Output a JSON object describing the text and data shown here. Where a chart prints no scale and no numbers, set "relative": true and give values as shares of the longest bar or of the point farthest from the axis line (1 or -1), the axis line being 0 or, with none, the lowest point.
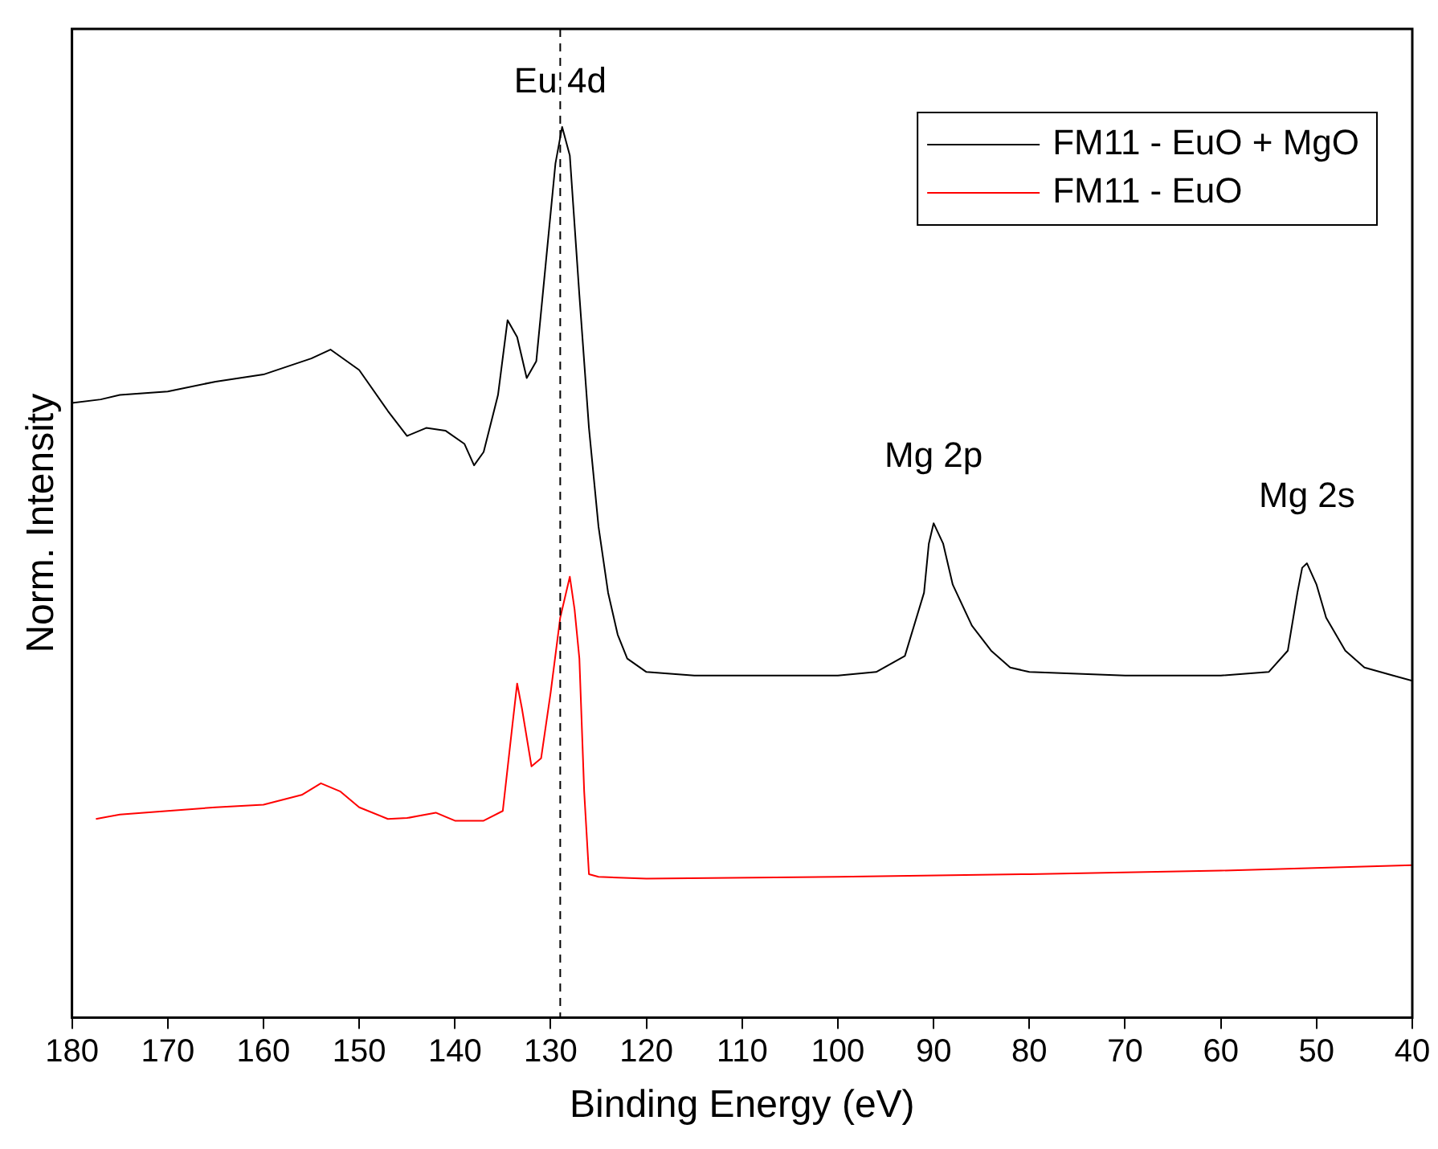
{
  "chart_data": {
    "type": "line",
    "xlabel": "Binding Energy (eV)",
    "ylabel": "Norm. Intensity",
    "relative": true,
    "xlim": [
      180,
      40
    ],
    "xticks": [
      180,
      170,
      160,
      150,
      140,
      130,
      120,
      110,
      100,
      90,
      80,
      70,
      60,
      50,
      40
    ],
    "tick_labels": "x",
    "legend": "top right",
    "grid": false,
    "marker": "none",
    "line_style": "solid",
    "series": [
      {
        "name": "FM11 - EuO + MgO",
        "color": "#000000",
        "x": [
          180,
          177,
          175,
          170,
          165,
          160,
          155,
          153,
          150,
          147,
          145,
          143,
          141,
          139,
          138,
          137,
          135.5,
          134.5,
          133.5,
          132.5,
          131.5,
          130.5,
          129.5,
          128.8,
          128,
          127,
          126,
          125,
          124,
          123,
          122,
          120,
          115,
          105,
          100,
          96,
          93,
          91,
          90.5,
          90,
          89,
          88,
          86,
          84,
          82,
          80,
          70,
          60,
          55,
          53,
          52,
          51.5,
          51,
          50,
          49,
          47,
          45,
          42,
          40
        ],
        "values": [
          0.69,
          0.694,
          0.699,
          0.703,
          0.714,
          0.722,
          0.74,
          0.75,
          0.727,
          0.681,
          0.653,
          0.662,
          0.659,
          0.644,
          0.62,
          0.635,
          0.699,
          0.783,
          0.764,
          0.718,
          0.737,
          0.848,
          0.959,
          1,
          0.968,
          0.811,
          0.662,
          0.551,
          0.477,
          0.43,
          0.403,
          0.388,
          0.384,
          0.384,
          0.384,
          0.388,
          0.406,
          0.477,
          0.532,
          0.555,
          0.532,
          0.486,
          0.44,
          0.412,
          0.393,
          0.388,
          0.384,
          0.384,
          0.388,
          0.412,
          0.477,
          0.505,
          0.51,
          0.486,
          0.449,
          0.412,
          0.393,
          0.384,
          0.378
        ]
      },
      {
        "name": "FM11 - EuO",
        "color": "#ff0000",
        "x": [
          177.5,
          175,
          170,
          165,
          160,
          156,
          154,
          152,
          150,
          147,
          145,
          142,
          140,
          137,
          135,
          134,
          133.5,
          133,
          132,
          131,
          130,
          129,
          128,
          127.5,
          127,
          126.5,
          126,
          125,
          120,
          100,
          80,
          60,
          40
        ],
        "values": [
          0.223,
          0.228,
          0.232,
          0.236,
          0.239,
          0.25,
          0.263,
          0.254,
          0.236,
          0.223,
          0.224,
          0.23,
          0.221,
          0.221,
          0.232,
          0.328,
          0.375,
          0.347,
          0.282,
          0.291,
          0.365,
          0.449,
          0.495,
          0.458,
          0.403,
          0.254,
          0.161,
          0.158,
          0.156,
          0.158,
          0.161,
          0.165,
          0.171
        ]
      }
    ],
    "ref_lines": [
      {
        "axis": "x",
        "value": 129,
        "color": "#000000",
        "line_style": "dashed"
      }
    ],
    "annotations": [
      {
        "text": "Eu 4d",
        "x": 129,
        "y": 1.03
      },
      {
        "text": "Mg 2p",
        "x": 90,
        "y": 0.555
      },
      {
        "text": "Mg 2s",
        "x": 51,
        "y": 0.51
      }
    ]
  }
}
